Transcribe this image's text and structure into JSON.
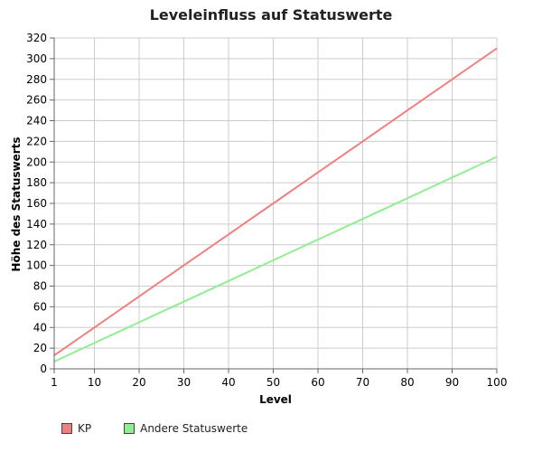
{
  "chart_data": {
    "type": "line",
    "title": "Leveleinfluss auf Statuswerte",
    "xlabel": "Level",
    "ylabel": "Höhe des Statuswerts",
    "xlim": [
      1,
      100
    ],
    "ylim": [
      0,
      320
    ],
    "xticks": [
      1,
      10,
      20,
      30,
      40,
      50,
      60,
      70,
      80,
      90,
      100
    ],
    "yticks": [
      0,
      20,
      40,
      60,
      80,
      100,
      120,
      140,
      160,
      180,
      200,
      220,
      240,
      260,
      280,
      300,
      320
    ],
    "grid": true,
    "legend_position": "bottom-left",
    "series": [
      {
        "name": "KP",
        "color": "#f08080",
        "x": [
          1,
          10,
          20,
          30,
          40,
          50,
          60,
          70,
          80,
          90,
          100
        ],
        "values": [
          13,
          40,
          70,
          100,
          130,
          160,
          190,
          220,
          250,
          280,
          310
        ]
      },
      {
        "name": "Andere Statuswerte",
        "color": "#90ee90",
        "x": [
          1,
          10,
          20,
          30,
          40,
          50,
          60,
          70,
          80,
          90,
          100
        ],
        "values": [
          7,
          25,
          45,
          65,
          85,
          105,
          125,
          145,
          165,
          185,
          205
        ]
      }
    ]
  }
}
